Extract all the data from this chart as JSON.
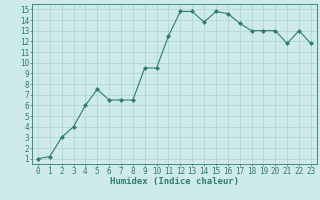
{
  "x": [
    0,
    1,
    2,
    3,
    4,
    5,
    6,
    7,
    8,
    9,
    10,
    11,
    12,
    13,
    14,
    15,
    16,
    17,
    18,
    19,
    20,
    21,
    22,
    23
  ],
  "y": [
    1,
    1.2,
    3,
    4,
    6,
    7.5,
    6.5,
    6.5,
    6.5,
    9.5,
    9.5,
    12.5,
    14.8,
    14.8,
    13.8,
    14.8,
    14.6,
    13.7,
    13,
    13,
    13,
    11.8,
    13,
    11.8
  ],
  "line_color": "#2e7d6e",
  "marker": "D",
  "marker_size": 2.0,
  "bg_color": "#ceeaea",
  "grid_color": "#b0d8d8",
  "xlabel": "Humidex (Indice chaleur)",
  "xlim": [
    -0.5,
    23.5
  ],
  "ylim": [
    0.5,
    15.5
  ],
  "yticks": [
    1,
    2,
    3,
    4,
    5,
    6,
    7,
    8,
    9,
    10,
    11,
    12,
    13,
    14,
    15
  ],
  "xticks": [
    0,
    1,
    2,
    3,
    4,
    5,
    6,
    7,
    8,
    9,
    10,
    11,
    12,
    13,
    14,
    15,
    16,
    17,
    18,
    19,
    20,
    21,
    22,
    23
  ],
  "axis_fontsize": 5.5,
  "label_fontsize": 6.5
}
